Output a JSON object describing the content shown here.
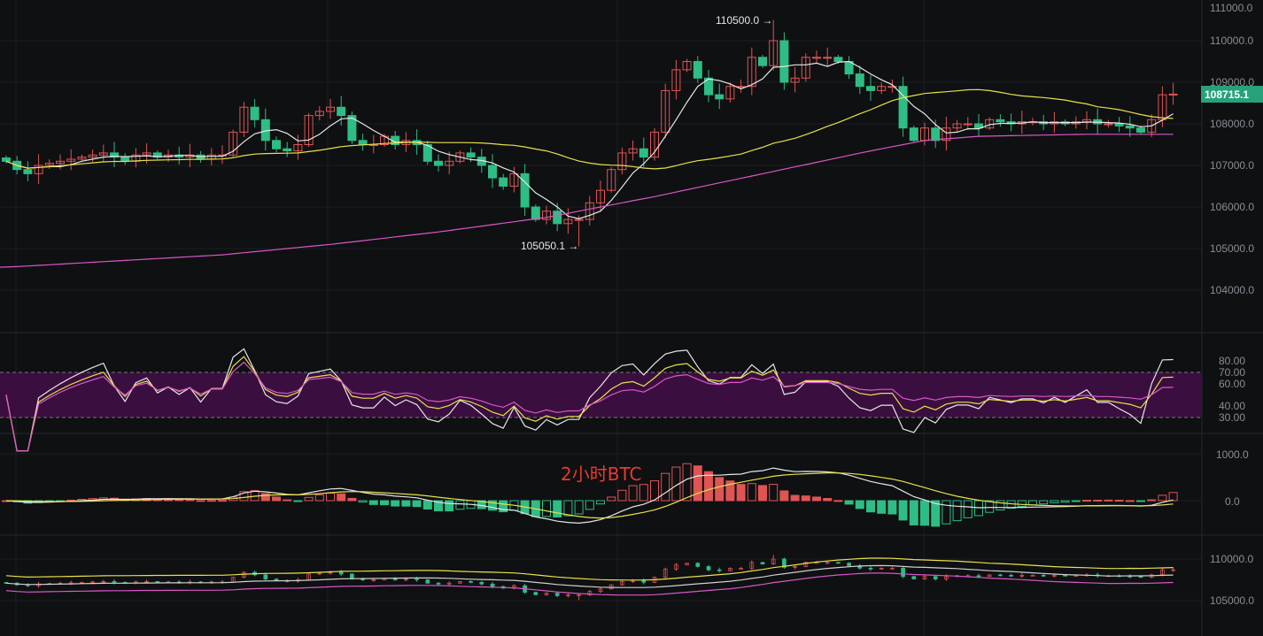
{
  "chart_data": {
    "type": "candlestick",
    "title": "2小时BTC",
    "closes": [
      107100,
      106900,
      106800,
      107000,
      107050,
      107100,
      107150,
      107200,
      107250,
      107300,
      107200,
      107100,
      107250,
      107300,
      107200,
      107250,
      107200,
      107250,
      107150,
      107250,
      107250,
      107800,
      108400,
      108100,
      107600,
      107400,
      107350,
      107500,
      108200,
      108300,
      108400,
      108200,
      107600,
      107500,
      107500,
      107700,
      107500,
      107600,
      107500,
      107100,
      107000,
      107100,
      107300,
      107200,
      107000,
      106700,
      106500,
      106800,
      106000,
      105700,
      105900,
      105600,
      105700,
      105700,
      106100,
      106400,
      106900,
      107300,
      107400,
      107200,
      107800,
      108800,
      109300,
      109500,
      109100,
      108700,
      108600,
      108900,
      108900,
      109600,
      109400,
      110000,
      109000,
      109100,
      109600,
      109600,
      109600,
      109500,
      109200,
      108900,
      108800,
      108900,
      108900,
      107900,
      107600,
      107900,
      107600,
      107900,
      108000,
      108000,
      107900,
      108100,
      108050,
      108000,
      108050,
      108050,
      108000,
      108050,
      108000,
      108050,
      108100,
      108000,
      108000,
      107950,
      107900,
      107800,
      108100,
      108700,
      108715.1
    ],
    "long_ma_anchors": [
      [
        0,
        104550
      ],
      [
        10,
        104700
      ],
      [
        20,
        104850
      ],
      [
        30,
        105100
      ],
      [
        40,
        105400
      ],
      [
        50,
        105750
      ],
      [
        60,
        106250
      ],
      [
        70,
        106800
      ],
      [
        80,
        107350
      ],
      [
        85,
        107600
      ],
      [
        90,
        107700
      ],
      [
        100,
        107750
      ],
      [
        108,
        107750
      ]
    ],
    "annotations": {
      "high_label": "110500.0 →",
      "high_value": 110500.0,
      "high_index": 71,
      "low_label": "105050.1 →",
      "low_value": 105050.1,
      "low_index": 53
    },
    "last_price": "108715.1",
    "price_axis": [
      "111000.0",
      "110000.0",
      "109000.0",
      "108000.0",
      "107000.0",
      "106000.0",
      "105000.0",
      "104000.0"
    ],
    "rsi_axis": [
      "80.00",
      "70.00",
      "60.00",
      "40.00",
      "30.00"
    ],
    "macd_axis": [
      "1000.0",
      "0.0"
    ],
    "mini_axis": [
      "110000.0",
      "105000.0"
    ],
    "colors": {
      "up": "#e05454",
      "down": "#2ebd85",
      "ma_short": "#e6e6e6",
      "ma_mid": "#e8e04a",
      "ma_long": "#d957c8",
      "rsi_band": "#3a0f3f",
      "tag": "#26a17b"
    }
  }
}
